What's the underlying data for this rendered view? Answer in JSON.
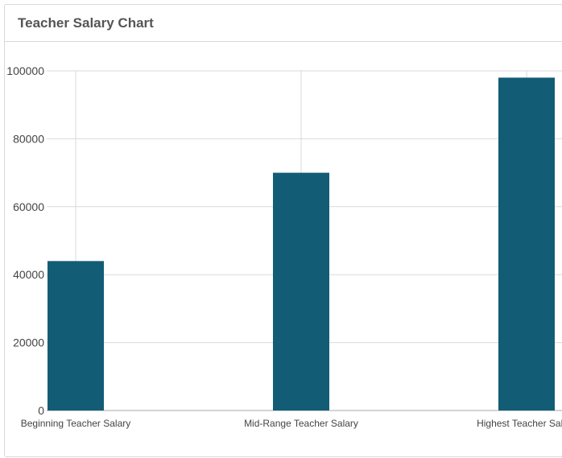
{
  "panel": {
    "title": "Teacher Salary Chart"
  },
  "colors": {
    "bar": "#125d75",
    "grid": "#d9d9d9",
    "axis": "#aaaaaa"
  },
  "chart_data": {
    "type": "bar",
    "title": "Teacher Salary Chart",
    "categories": [
      "Beginning Teacher Salary",
      "Mid-Range Teacher Salary",
      "Highest Teacher Salary"
    ],
    "values": [
      44000,
      70000,
      98000
    ],
    "ylim": [
      0,
      100000
    ],
    "yticks": [
      "0",
      "20000",
      "40000",
      "60000",
      "80000",
      "100000"
    ],
    "grid": true,
    "legend": "none"
  }
}
